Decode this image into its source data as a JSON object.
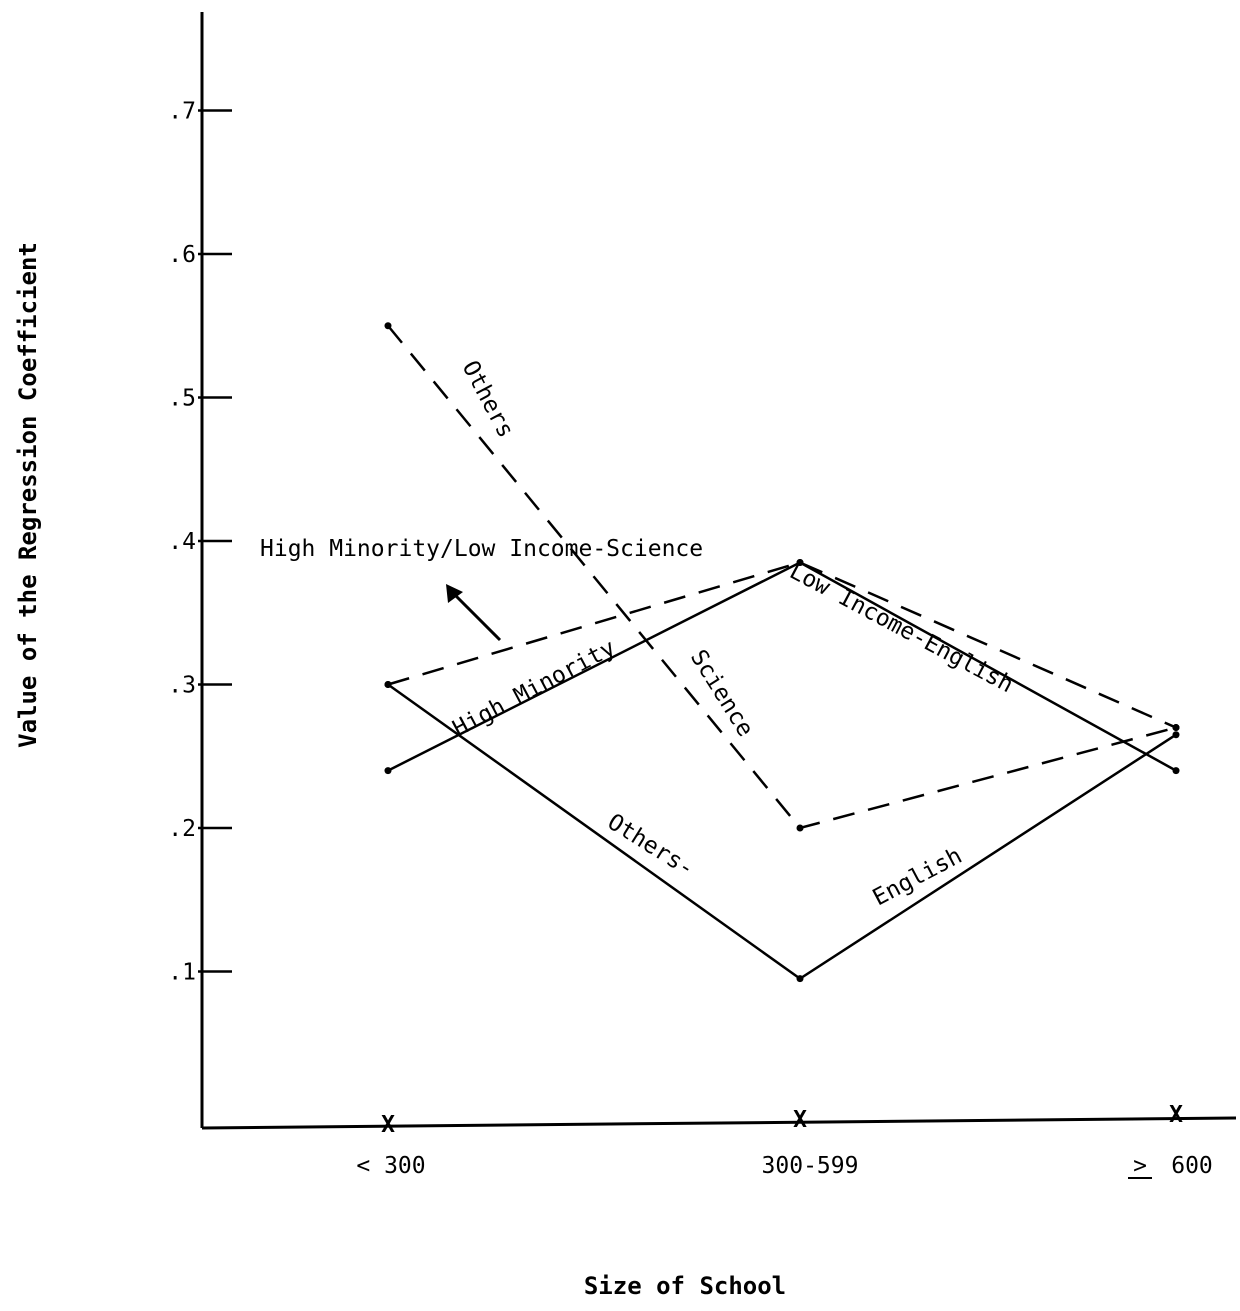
{
  "chart_data": {
    "type": "line",
    "xlabel": "Size of School",
    "ylabel": "Value of the Regression Coefficient",
    "categories": [
      "< 300",
      "300-599",
      "≥ 600"
    ],
    "category_display": {
      "lt": "<",
      "lt_text": "300",
      "mid": "300-599",
      "ge_text": "600"
    },
    "yticks": [
      ".1",
      ".2",
      ".3",
      ".4",
      ".5",
      ".6",
      ".7"
    ],
    "ytick_values": [
      0.1,
      0.2,
      0.3,
      0.4,
      0.5,
      0.6,
      0.7
    ],
    "ylim": [
      0,
      0.78
    ],
    "grid": false,
    "series": [
      {
        "name": "High Minority/Low Income-Science",
        "style": "dashed",
        "values": [
          0.3,
          0.385,
          0.27
        ]
      },
      {
        "name": "Low Income-English",
        "style": "solid",
        "values": [
          0.24,
          0.385,
          0.24
        ]
      },
      {
        "name": "Others-Science",
        "style": "dashed",
        "values": [
          0.55,
          0.2,
          0.27
        ]
      },
      {
        "name": "Others-English",
        "style": "solid",
        "values": [
          0.3,
          0.095,
          0.265
        ]
      }
    ],
    "annotations": {
      "high_minority_low_income_science": "High Minority/Low Income-Science",
      "low_income_english": "Low Income-English",
      "high_minority": "High Minority",
      "science": "Science",
      "others_top": "Others",
      "others_bottom": "Others-",
      "english": "English"
    }
  }
}
